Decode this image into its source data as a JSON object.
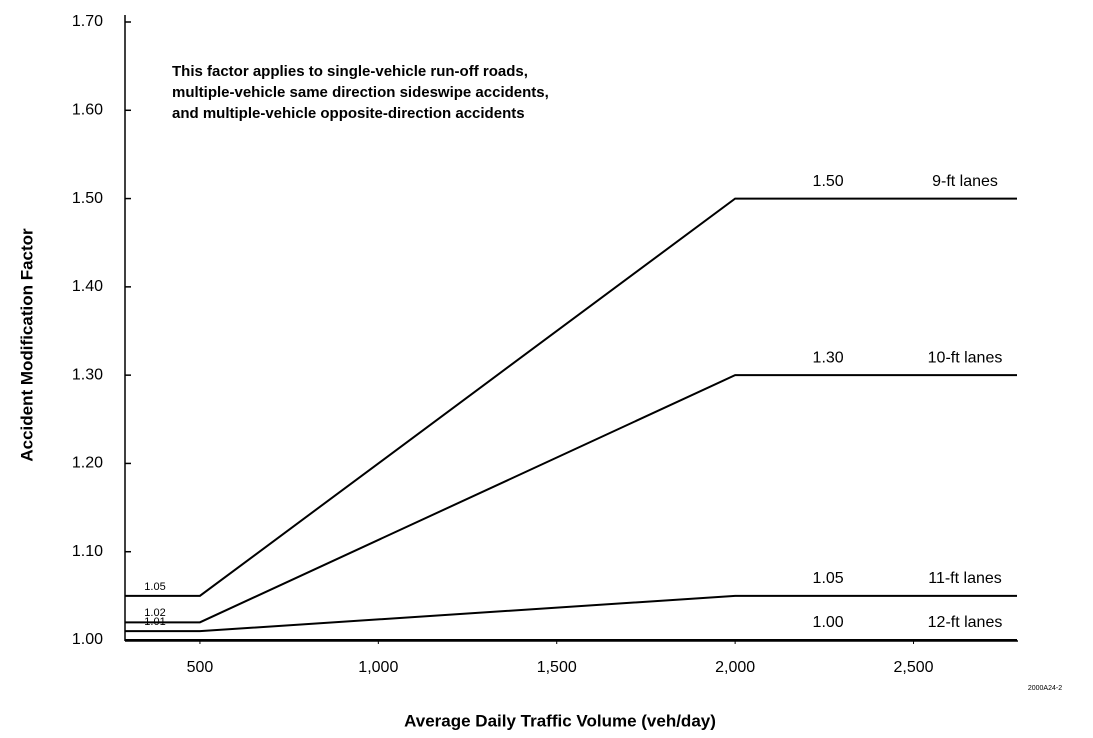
{
  "chart_data": {
    "type": "line",
    "y_label": "Accident Modification Factor",
    "x_label": "Average Daily Traffic Volume (veh/day)",
    "annotation": [
      "This factor applies to single-vehicle run-off roads,",
      "multiple-vehicle same direction sideswipe accidents,",
      "and multiple-vehicle opposite-direction accidents"
    ],
    "note": "2000A24-2",
    "x": [
      290,
      500,
      2000,
      2790
    ],
    "series": [
      {
        "name": "9-ft lanes",
        "color": "#000000",
        "values": [
          1.05,
          1.05,
          1.5,
          1.5
        ],
        "value_labels": [
          "1.05",
          null,
          "1.50",
          null
        ]
      },
      {
        "name": "10-ft lanes",
        "color": "#000000",
        "values": [
          1.02,
          1.02,
          1.3,
          1.3
        ],
        "value_labels": [
          "1.02",
          null,
          "1.30",
          null
        ]
      },
      {
        "name": "11-ft lanes",
        "color": "#000000",
        "values": [
          1.01,
          1.01,
          1.05,
          1.05
        ],
        "value_labels": [
          "1.01",
          null,
          "1.05",
          null
        ]
      },
      {
        "name": "12-ft lanes",
        "color": "#000000",
        "values": [
          1.0,
          1.0,
          1.0,
          1.0
        ],
        "value_labels": [
          null,
          null,
          "1.00",
          null
        ]
      }
    ],
    "xlim": [
      290,
      2790
    ],
    "xticks": [
      500,
      {
        "value": 1000,
        "label": "1,000"
      },
      {
        "value": 1500,
        "label": "1,500"
      },
      {
        "value": 2000,
        "label": "2,000"
      },
      {
        "value": 2500,
        "label": "2,500"
      }
    ],
    "ylim": [
      1.0,
      1.7
    ],
    "yticks": [
      {
        "value": 1.0,
        "label": "1.00"
      },
      {
        "value": 1.1,
        "label": "1.10"
      },
      {
        "value": 1.2,
        "label": "1.20"
      },
      {
        "value": 1.3,
        "label": "1.30"
      },
      {
        "value": 1.4,
        "label": "1.40"
      },
      {
        "value": 1.5,
        "label": "1.50"
      },
      {
        "value": 1.6,
        "label": "1.60"
      },
      {
        "value": 1.7,
        "label": "1.70"
      }
    ],
    "grid": false
  }
}
